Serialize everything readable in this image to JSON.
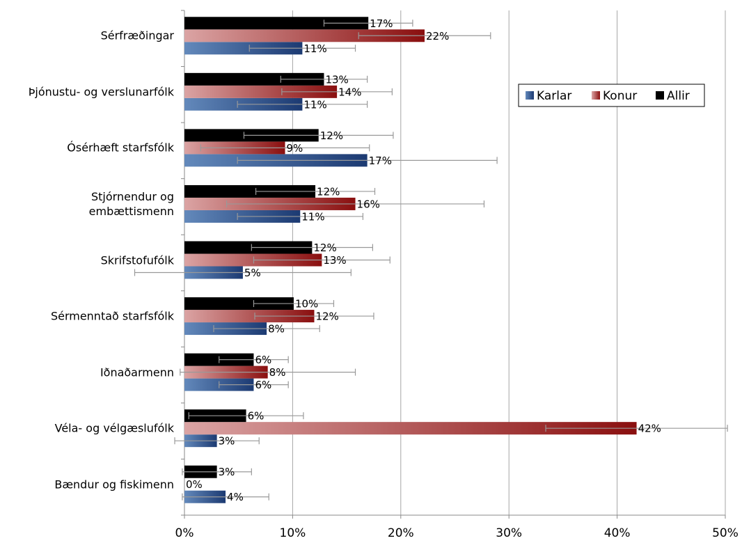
{
  "chart_data": {
    "type": "bar",
    "orientation": "horizontal",
    "categories": [
      "Sérfræðingar",
      "Þjónustu- og verslunarfólk",
      "Ósérhæft starfsfólk",
      "Stjórnendur og\nembættismenn",
      "Skrifstofufólk",
      "Sérmenntað starfsfólk",
      "Iðnaðarmenn",
      "Véla- og vélgæslufólk",
      "Bændur og fiskimenn"
    ],
    "series": [
      {
        "name": "Karlar",
        "color": [
          "#6389bb",
          "#1c3a72"
        ],
        "values": [
          10.9,
          10.9,
          16.9,
          10.7,
          5.4,
          7.6,
          6.4,
          3.0,
          3.8
        ],
        "value_labels": [
          "11%",
          "11%",
          "17%",
          "11%",
          "5%",
          "8%",
          "6%",
          "3%",
          "4%"
        ],
        "errors": [
          4.9,
          6.0,
          12.0,
          5.8,
          10.0,
          4.9,
          3.2,
          3.9,
          4.0
        ]
      },
      {
        "name": "Konur",
        "color": [
          "#dba4a4",
          "#8a0f0f"
        ],
        "values": [
          22.2,
          14.1,
          9.3,
          15.8,
          12.7,
          12.0,
          7.7,
          41.8,
          0
        ],
        "value_labels": [
          "22%",
          "14%",
          "9%",
          "16%",
          "13%",
          "12%",
          "8%",
          "42%",
          "0%"
        ],
        "errors": [
          6.1,
          5.1,
          7.8,
          11.9,
          6.3,
          5.5,
          8.1,
          8.4,
          0
        ]
      },
      {
        "name": "Allir",
        "color": [
          "#000000",
          "#000000"
        ],
        "values": [
          17.0,
          12.9,
          12.4,
          12.1,
          11.8,
          10.1,
          6.4,
          5.7,
          3.0
        ],
        "value_labels": [
          "17%",
          "13%",
          "12%",
          "12%",
          "12%",
          "10%",
          "6%",
          "6%",
          "3%"
        ],
        "errors": [
          4.1,
          4.0,
          6.9,
          5.5,
          5.6,
          3.7,
          3.2,
          5.3,
          3.2
        ]
      }
    ],
    "xlim": [
      0,
      50
    ],
    "xticks": [
      {
        "value": 0,
        "label": "0%"
      },
      {
        "value": 10,
        "label": "10%"
      },
      {
        "value": 20,
        "label": "20%"
      },
      {
        "value": 30,
        "label": "30%"
      },
      {
        "value": 40,
        "label": "40%"
      },
      {
        "value": 50,
        "label": "50%"
      }
    ],
    "grid": true,
    "legend": "upper right"
  }
}
